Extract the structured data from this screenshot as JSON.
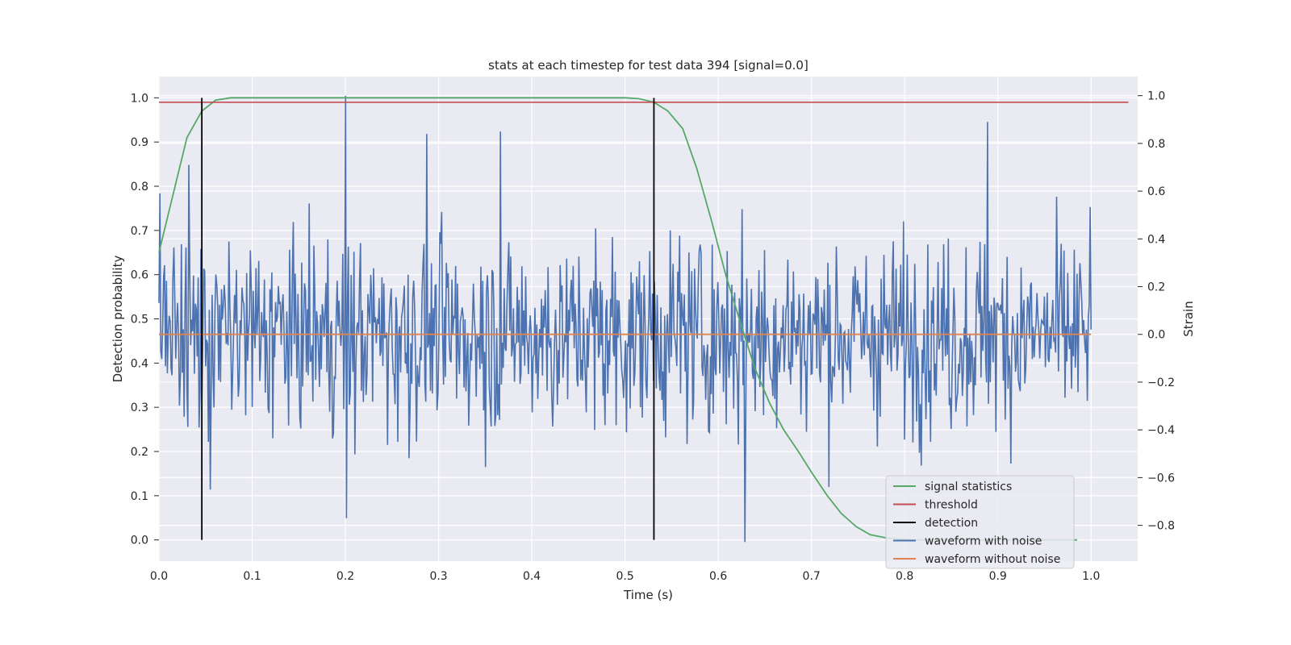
{
  "chart_data": {
    "type": "line",
    "title": "stats at each timestep for test data 394 [signal=0.0]",
    "xlabel": "Time (s)",
    "ylabel": "Detection probability",
    "ylabel_right": "Strain",
    "xlim": [
      0.0,
      1.05
    ],
    "ylim": [
      -0.048,
      1.048
    ],
    "ylim_right": [
      -0.95,
      1.08
    ],
    "x_ticks": [
      "0.0",
      "0.1",
      "0.2",
      "0.3",
      "0.4",
      "0.5",
      "0.6",
      "0.7",
      "0.8",
      "0.9",
      "1.0"
    ],
    "y_ticks": [
      "0.0",
      "0.1",
      "0.2",
      "0.3",
      "0.4",
      "0.5",
      "0.6",
      "0.7",
      "0.8",
      "0.9",
      "1.0"
    ],
    "y_ticks_right": [
      "−0.8",
      "−0.6",
      "−0.4",
      "−0.2",
      "0.0",
      "0.2",
      "0.4",
      "0.6",
      "0.8",
      "1.0"
    ],
    "grid": true,
    "legend_position": "bottom-right",
    "colors": {
      "plot_background": "#eaeaf2",
      "grid": "#ffffff",
      "signal_statistics": "#55a868",
      "threshold": "#c44e52",
      "detection": "#000000",
      "waveform_with_noise": "#4c72b0",
      "waveform_without_noise": "#dd8452"
    },
    "legend": [
      "signal statistics",
      "threshold",
      "detection",
      "waveform with noise",
      "waveform without noise"
    ],
    "series": [
      {
        "name": "signal statistics",
        "axis": "left",
        "x": [
          0.0,
          0.015,
          0.03,
          0.046,
          0.061,
          0.077,
          0.1,
          0.2,
          0.3,
          0.4,
          0.5,
          0.515,
          0.531,
          0.546,
          0.562,
          0.577,
          0.593,
          0.608,
          0.624,
          0.639,
          0.655,
          0.67,
          0.686,
          0.701,
          0.717,
          0.732,
          0.748,
          0.763,
          0.779,
          0.794,
          0.81,
          0.9,
          0.985
        ],
        "values": [
          0.65,
          0.78,
          0.91,
          0.97,
          0.995,
          1.0,
          1.0,
          1.0,
          1.0,
          1.0,
          1.0,
          0.998,
          0.99,
          0.97,
          0.93,
          0.84,
          0.72,
          0.6,
          0.49,
          0.39,
          0.31,
          0.25,
          0.2,
          0.15,
          0.1,
          0.06,
          0.03,
          0.012,
          0.005,
          0.002,
          0.0,
          0.0,
          0.0
        ]
      },
      {
        "name": "threshold",
        "axis": "left",
        "x": [
          0.0,
          1.04
        ],
        "values": [
          0.99,
          0.99
        ]
      },
      {
        "name": "detection",
        "axis": "left",
        "segments": [
          {
            "x": 0.046,
            "y": [
              0.0,
              1.0
            ]
          },
          {
            "x": 0.531,
            "y": [
              0.0,
              1.0
            ]
          }
        ]
      },
      {
        "name": "waveform with noise",
        "axis": "right",
        "x_range": [
          0.0,
          1.0
        ],
        "samples": 1000,
        "approx_std": 0.28,
        "peaks": [
          {
            "x": 0.2,
            "y": 1.0
          },
          {
            "x": 0.201,
            "y": -0.77
          },
          {
            "x": 0.287,
            "y": 0.84
          },
          {
            "x": 0.366,
            "y": 0.85
          },
          {
            "x": 0.629,
            "y": -0.87
          },
          {
            "x": 0.889,
            "y": 0.89
          },
          {
            "x": 0.032,
            "y": 0.71
          },
          {
            "x": 0.055,
            "y": -0.65
          }
        ]
      },
      {
        "name": "waveform without noise",
        "axis": "right",
        "x": [
          0.0,
          1.0
        ],
        "values": [
          0.0,
          0.0
        ]
      }
    ]
  }
}
